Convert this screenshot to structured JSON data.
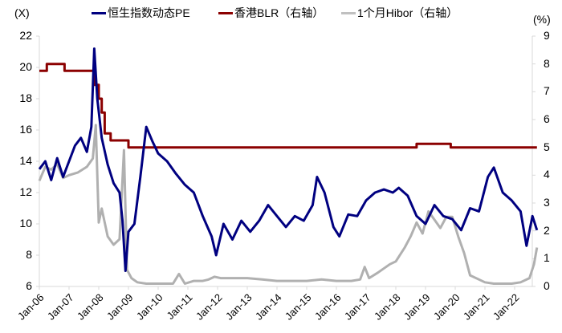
{
  "chart_data": {
    "type": "line",
    "title": "",
    "left_unit": "(X)",
    "right_unit": "(%)",
    "xlabel": "",
    "ylabel": "",
    "x_ticks": [
      "Jan-06",
      "Jan-07",
      "Jan-08",
      "Jan-09",
      "Jan-10",
      "Jan-11",
      "Jan-12",
      "Jan-13",
      "Jan-14",
      "Jan-15",
      "Jan-16",
      "Jan-17",
      "Jan-18",
      "Jan-19",
      "Jan-20",
      "Jan-21",
      "Jan-22"
    ],
    "y_left_ticks": [
      22,
      20,
      18,
      16,
      14,
      12,
      10,
      8,
      6
    ],
    "y_right_ticks": [
      9,
      8,
      7,
      6,
      5,
      4,
      3,
      2,
      1,
      0
    ],
    "ylim_left": [
      6,
      22
    ],
    "ylim_right": [
      0,
      9
    ],
    "grid": false,
    "legend_position": "top",
    "series": [
      {
        "name": "恒生指数动态PE",
        "axis": "left",
        "color": "#000080",
        "x": [
          2006.0,
          2006.2,
          2006.4,
          2006.6,
          2006.8,
          2007.0,
          2007.2,
          2007.4,
          2007.6,
          2007.75,
          2007.85,
          2007.95,
          2008.1,
          2008.3,
          2008.5,
          2008.7,
          2008.8,
          2008.9,
          2009.0,
          2009.2,
          2009.4,
          2009.6,
          2009.8,
          2010.0,
          2010.3,
          2010.6,
          2010.9,
          2011.2,
          2011.5,
          2011.8,
          2011.95,
          2012.2,
          2012.5,
          2012.8,
          2013.1,
          2013.4,
          2013.7,
          2014.0,
          2014.3,
          2014.6,
          2014.9,
          2015.2,
          2015.35,
          2015.6,
          2015.9,
          2016.1,
          2016.4,
          2016.7,
          2017.0,
          2017.3,
          2017.6,
          2017.9,
          2018.1,
          2018.4,
          2018.7,
          2019.0,
          2019.3,
          2019.6,
          2019.9,
          2020.2,
          2020.5,
          2020.8,
          2021.1,
          2021.3,
          2021.6,
          2021.9,
          2022.2,
          2022.4,
          2022.6,
          2022.75
        ],
        "values": [
          13.5,
          14.0,
          12.8,
          14.2,
          13.0,
          14.0,
          15.0,
          15.5,
          14.6,
          16.2,
          21.2,
          18.0,
          15.5,
          13.8,
          12.6,
          12.0,
          10.2,
          7.0,
          9.5,
          10.0,
          13.0,
          16.2,
          15.3,
          14.5,
          14.0,
          13.2,
          12.5,
          12.0,
          10.5,
          9.2,
          8.0,
          10.0,
          9.0,
          10.2,
          9.5,
          10.2,
          11.2,
          10.5,
          9.8,
          10.5,
          10.2,
          11.2,
          13.0,
          12.0,
          9.8,
          9.2,
          10.6,
          10.5,
          11.5,
          12.0,
          12.2,
          12.0,
          12.3,
          11.8,
          10.5,
          10.0,
          11.2,
          10.5,
          10.3,
          9.6,
          11.0,
          10.8,
          13.0,
          13.6,
          12.0,
          11.5,
          10.8,
          8.6,
          10.5,
          9.6
        ]
      },
      {
        "name": "香港BLR（右轴）",
        "axis": "right",
        "color": "#8B0000",
        "x": [
          2006.0,
          2006.25,
          2006.25,
          2006.85,
          2006.85,
          2007.85,
          2007.85,
          2008.0,
          2008.0,
          2008.1,
          2008.1,
          2008.2,
          2008.2,
          2008.4,
          2008.4,
          2008.8,
          2008.8,
          2009.0,
          2009.0,
          2018.7,
          2018.7,
          2019.85,
          2019.85,
          2022.75
        ],
        "values": [
          7.75,
          7.75,
          8.0,
          8.0,
          7.75,
          7.75,
          7.25,
          7.25,
          6.75,
          6.75,
          6.25,
          6.25,
          5.5,
          5.5,
          5.25,
          5.25,
          5.25,
          5.25,
          5.0,
          5.0,
          5.125,
          5.125,
          5.0,
          5.0
        ]
      },
      {
        "name": "1个月Hibor（右轴）",
        "axis": "right",
        "color": "#A9A9A9",
        "x": [
          2006.0,
          2006.2,
          2006.4,
          2006.6,
          2006.8,
          2007.0,
          2007.3,
          2007.6,
          2007.8,
          2007.9,
          2008.0,
          2008.1,
          2008.3,
          2008.5,
          2008.7,
          2008.85,
          2008.95,
          2009.1,
          2009.3,
          2009.6,
          2009.9,
          2010.2,
          2010.5,
          2010.7,
          2010.9,
          2011.2,
          2011.5,
          2011.7,
          2011.9,
          2012.1,
          2012.5,
          2013.0,
          2013.5,
          2014.0,
          2014.5,
          2015.0,
          2015.5,
          2016.0,
          2016.5,
          2016.8,
          2016.95,
          2017.1,
          2017.4,
          2017.8,
          2018.0,
          2018.3,
          2018.5,
          2018.7,
          2018.9,
          2019.1,
          2019.3,
          2019.5,
          2019.7,
          2019.9,
          2020.1,
          2020.3,
          2020.5,
          2020.8,
          2021.0,
          2021.3,
          2021.6,
          2021.9,
          2022.2,
          2022.5,
          2022.65,
          2022.75
        ],
        "values": [
          3.8,
          4.3,
          4.2,
          4.4,
          3.9,
          4.0,
          4.1,
          4.3,
          4.6,
          5.8,
          2.3,
          2.8,
          1.8,
          1.5,
          1.7,
          4.9,
          0.6,
          0.3,
          0.15,
          0.1,
          0.1,
          0.1,
          0.1,
          0.45,
          0.1,
          0.2,
          0.2,
          0.25,
          0.35,
          0.3,
          0.3,
          0.3,
          0.25,
          0.2,
          0.2,
          0.2,
          0.25,
          0.2,
          0.2,
          0.25,
          0.7,
          0.3,
          0.5,
          0.8,
          0.9,
          1.4,
          1.8,
          2.3,
          1.9,
          2.7,
          2.4,
          2.1,
          2.5,
          2.5,
          1.8,
          1.2,
          0.4,
          0.25,
          0.15,
          0.1,
          0.1,
          0.1,
          0.15,
          0.3,
          0.8,
          1.4
        ]
      }
    ]
  },
  "legend": {
    "items": [
      {
        "label": "恒生指数动态PE",
        "color": "#000080"
      },
      {
        "label": "香港BLR（右轴）",
        "color": "#8B0000"
      },
      {
        "label": "1个月Hibor（右轴）",
        "color": "#A9A9A9"
      }
    ]
  }
}
